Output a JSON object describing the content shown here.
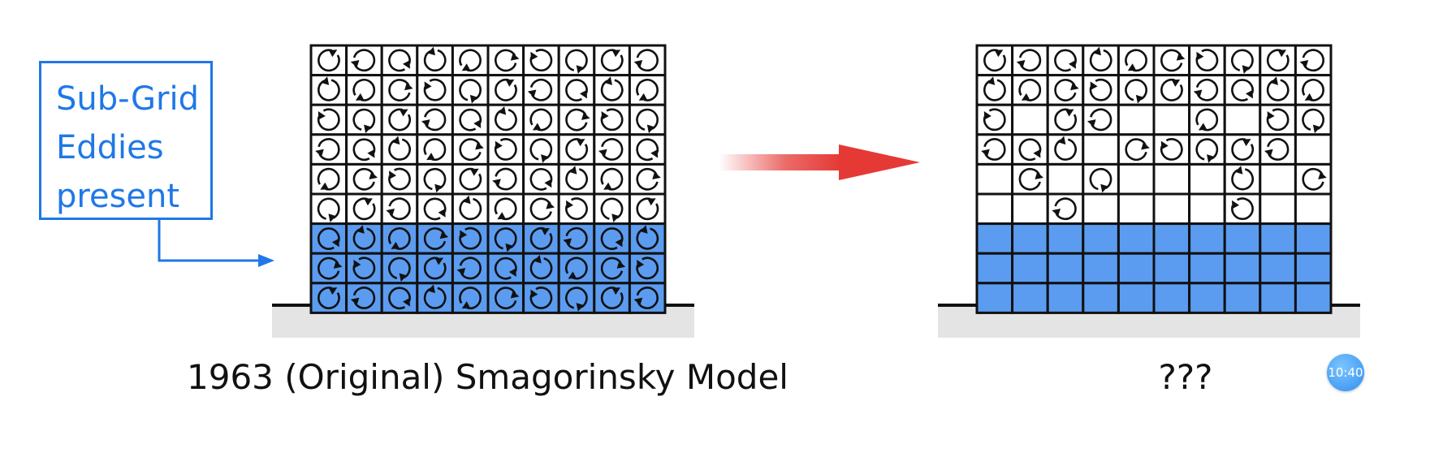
{
  "callout": {
    "lines": [
      "Sub-Grid",
      "Eddies",
      "present"
    ]
  },
  "left_panel": {
    "caption": "1963 (Original) Smagorinsky Model"
  },
  "right_panel": {
    "caption": "???"
  },
  "timer": {
    "label": "10:40"
  },
  "colors": {
    "accent_blue": "#1f78e6",
    "cell_fill_blue": "#5b9cf0",
    "arrow_red": "#e53935",
    "ground": "#e4e4e4"
  },
  "grid": {
    "rows": 9,
    "cols": 10
  },
  "left_eddies": [
    "1111111111",
    "1111111111",
    "1111111111",
    "1111111111",
    "1111111111",
    "1111111111",
    "1111111111",
    "1111111111",
    "1111111111"
  ],
  "left_fills": [
    "0000000000",
    "0000000000",
    "0000000000",
    "0000000000",
    "0000000000",
    "0000000000",
    "1111111111",
    "1111111111",
    "1111111111"
  ],
  "right_eddies": [
    "1111111111",
    "1111111111",
    "1011001011",
    "1110111110",
    "0101000101",
    "0010000100",
    "0000000000",
    "0000000000",
    "0000000000"
  ],
  "right_fills": [
    "0000000000",
    "0000000000",
    "0000000000",
    "0000000000",
    "0000000000",
    "0000000000",
    "1111111111",
    "1111111111",
    "1111111111"
  ]
}
